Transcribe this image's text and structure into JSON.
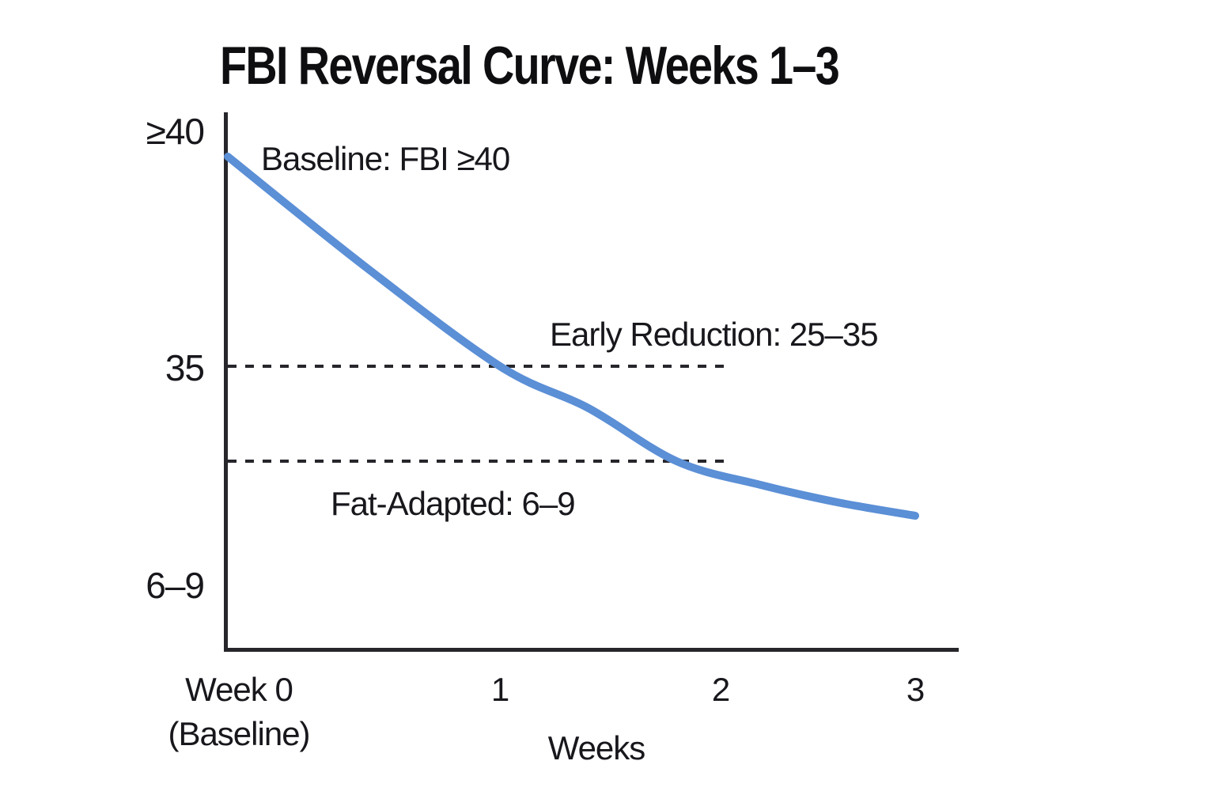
{
  "title": "FBI Reversal Curve: Weeks 1–3",
  "colors": {
    "curve": "#5b8fd6",
    "axis": "#26262b",
    "dashed": "#26262b",
    "text": "#17171c",
    "background": "#ffffff"
  },
  "y_axis": {
    "tick_top": "≥40",
    "tick_mid": "35",
    "tick_bottom": "6–9"
  },
  "x_axis": {
    "title": "Weeks",
    "tick0_line1": "Week 0",
    "tick0_line2": "(Baseline)",
    "tick1": "1",
    "tick2": "2",
    "tick3": "3"
  },
  "annotations": {
    "baseline": "Baseline: FBI ≥40",
    "early_reduction": "Early Reduction: 25–35",
    "fat_adapted": "Fat-Adapted: 6–9"
  },
  "chart_data": {
    "type": "line",
    "title": "FBI Reversal Curve: Weeks 1–3",
    "xlabel": "Weeks",
    "ylabel": "",
    "x_range": [
      0,
      3
    ],
    "x_tick_labels": [
      "Week 0 (Baseline)",
      "1",
      "2",
      "3"
    ],
    "y_tick_labels": [
      "≥40",
      "35",
      "6–9"
    ],
    "grid": false,
    "legend": false,
    "series": [
      {
        "name": "FBI",
        "points": [
          [
            0,
            40
          ],
          [
            0.5,
            37.4
          ],
          [
            1,
            35
          ],
          [
            1.4,
            30.6
          ],
          [
            1.8,
            25
          ],
          [
            2.2,
            22.2
          ],
          [
            2.6,
            20.1
          ],
          [
            3,
            18.5
          ]
        ]
      }
    ],
    "baseline_annotation": {
      "value": 40,
      "label": "Baseline: FBI ≥40"
    },
    "thresholds": [
      {
        "value": 35,
        "label": "Early Reduction: 25–35",
        "style": "dashed"
      },
      {
        "value": 25,
        "label": "Fat-Adapted: 6–9",
        "style": "dashed"
      }
    ]
  }
}
